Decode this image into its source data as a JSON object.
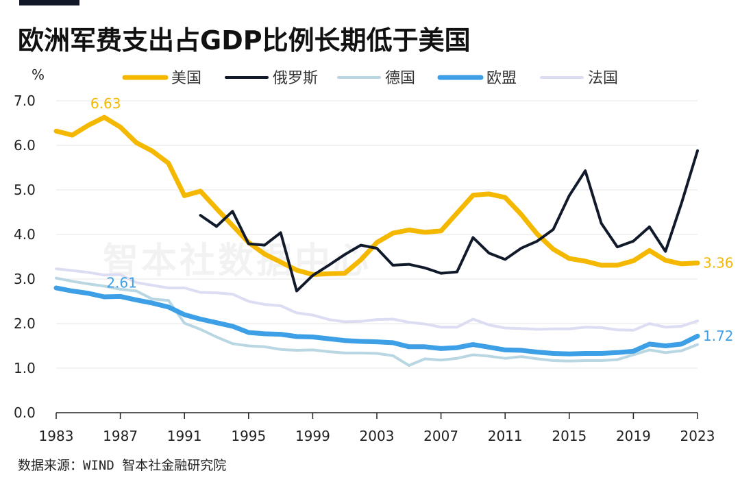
{
  "title": "欧洲军费支出占GDP比例长期低于美国",
  "source": "数据来源：WIND 智本社金融研究院",
  "watermark": "智本社数据中心",
  "chart_data": {
    "type": "line",
    "ylabel": "%",
    "ylim": [
      0,
      7
    ],
    "yticks": [
      "0.0",
      "1.0",
      "2.0",
      "3.0",
      "4.0",
      "5.0",
      "6.0",
      "7.0"
    ],
    "xlim": [
      1983,
      2023
    ],
    "xticks": [
      "1983",
      "1987",
      "1991",
      "1995",
      "1999",
      "2003",
      "2007",
      "2011",
      "2015",
      "2019",
      "2023"
    ],
    "grid": "horizontal",
    "legend_position": "top",
    "series": [
      {
        "name": "美国",
        "color": "#F5B800",
        "width": 7,
        "start": 1983,
        "values": [
          6.32,
          6.23,
          6.45,
          6.63,
          6.41,
          6.06,
          5.87,
          5.6,
          4.87,
          4.97,
          4.58,
          4.2,
          3.82,
          3.56,
          3.38,
          3.2,
          3.1,
          3.12,
          3.13,
          3.43,
          3.82,
          4.03,
          4.1,
          4.05,
          4.08,
          4.48,
          4.88,
          4.91,
          4.83,
          4.45,
          4.01,
          3.67,
          3.46,
          3.4,
          3.31,
          3.31,
          3.41,
          3.64,
          3.42,
          3.34,
          3.36
        ],
        "labels": [
          {
            "year": 1986,
            "text": "6.63",
            "pos": "above"
          },
          {
            "year": 2023,
            "text": "3.36",
            "pos": "right"
          }
        ]
      },
      {
        "name": "俄罗斯",
        "color": "#111A2B",
        "width": 4,
        "start": 1992,
        "values": [
          4.43,
          4.18,
          4.52,
          3.79,
          3.76,
          4.04,
          2.73,
          3.08,
          3.31,
          3.55,
          3.76,
          3.69,
          3.31,
          3.33,
          3.25,
          3.13,
          3.16,
          3.93,
          3.58,
          3.44,
          3.69,
          3.85,
          4.11,
          4.87,
          5.43,
          4.25,
          3.72,
          3.85,
          4.17,
          3.62,
          4.7,
          5.88
        ],
        "labels": []
      },
      {
        "name": "德国",
        "color": "#B9D6E3",
        "width": 4,
        "start": 1983,
        "values": [
          3.02,
          2.95,
          2.89,
          2.84,
          2.77,
          2.73,
          2.55,
          2.52,
          2.01,
          1.87,
          1.7,
          1.55,
          1.5,
          1.48,
          1.42,
          1.4,
          1.41,
          1.37,
          1.34,
          1.34,
          1.33,
          1.28,
          1.06,
          1.21,
          1.18,
          1.22,
          1.3,
          1.27,
          1.22,
          1.26,
          1.21,
          1.17,
          1.16,
          1.17,
          1.17,
          1.19,
          1.3,
          1.41,
          1.35,
          1.39,
          1.53
        ],
        "labels": []
      },
      {
        "name": "欧盟",
        "color": "#3D9FE5",
        "width": 7,
        "start": 1983,
        "values": [
          2.8,
          2.73,
          2.68,
          2.6,
          2.61,
          2.53,
          2.46,
          2.37,
          2.2,
          2.1,
          2.02,
          1.94,
          1.8,
          1.77,
          1.76,
          1.71,
          1.7,
          1.66,
          1.62,
          1.6,
          1.59,
          1.57,
          1.48,
          1.48,
          1.44,
          1.46,
          1.53,
          1.47,
          1.41,
          1.4,
          1.36,
          1.33,
          1.32,
          1.33,
          1.33,
          1.35,
          1.38,
          1.54,
          1.5,
          1.54,
          1.72
        ],
        "labels": [
          {
            "year": 1987,
            "text": "2.61",
            "pos": "above"
          },
          {
            "year": 2023,
            "text": "1.72",
            "pos": "right"
          }
        ]
      },
      {
        "name": "法国",
        "color": "#DCDDF3",
        "width": 4,
        "start": 1983,
        "values": [
          3.23,
          3.19,
          3.15,
          3.09,
          3.1,
          2.92,
          2.86,
          2.8,
          2.8,
          2.7,
          2.69,
          2.66,
          2.5,
          2.43,
          2.4,
          2.24,
          2.19,
          2.09,
          2.04,
          2.05,
          2.09,
          2.1,
          2.03,
          1.99,
          1.92,
          1.92,
          2.1,
          1.97,
          1.9,
          1.89,
          1.87,
          1.88,
          1.88,
          1.92,
          1.91,
          1.86,
          1.85,
          2.0,
          1.92,
          1.94,
          2.06
        ],
        "labels": []
      }
    ]
  }
}
